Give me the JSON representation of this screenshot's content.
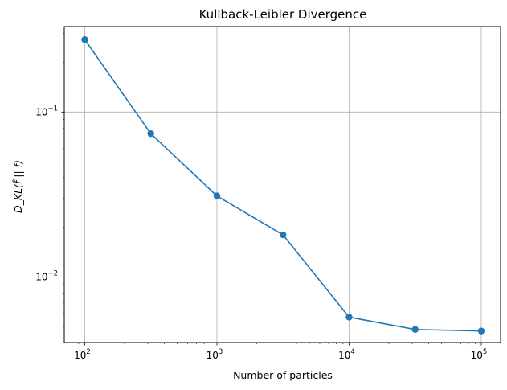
{
  "chart_data": {
    "type": "line",
    "title": "Kullback-Leibler Divergence",
    "xlabel": "Number of particles",
    "ylabel": "D_KL(f̂ || f)",
    "xscale": "log",
    "yscale": "log",
    "xlim": [
      70,
      140000
    ],
    "ylim": [
      0.004,
      0.33
    ],
    "grid": true,
    "line_color": "#1f77b4",
    "x_ticks": [
      {
        "base": "10",
        "exp": "2",
        "value": 100
      },
      {
        "base": "10",
        "exp": "3",
        "value": 1000
      },
      {
        "base": "10",
        "exp": "4",
        "value": 10000
      },
      {
        "base": "10",
        "exp": "5",
        "value": 100000
      }
    ],
    "y_ticks": [
      {
        "base": "10",
        "exp": "−2",
        "value": 0.01
      },
      {
        "base": "10",
        "exp": "−1",
        "value": 0.1
      }
    ],
    "x": [
      100,
      316,
      1000,
      3162,
      10000,
      31623,
      100000
    ],
    "values": [
      0.275,
      0.074,
      0.031,
      0.018,
      0.0057,
      0.0048,
      0.0047
    ]
  }
}
